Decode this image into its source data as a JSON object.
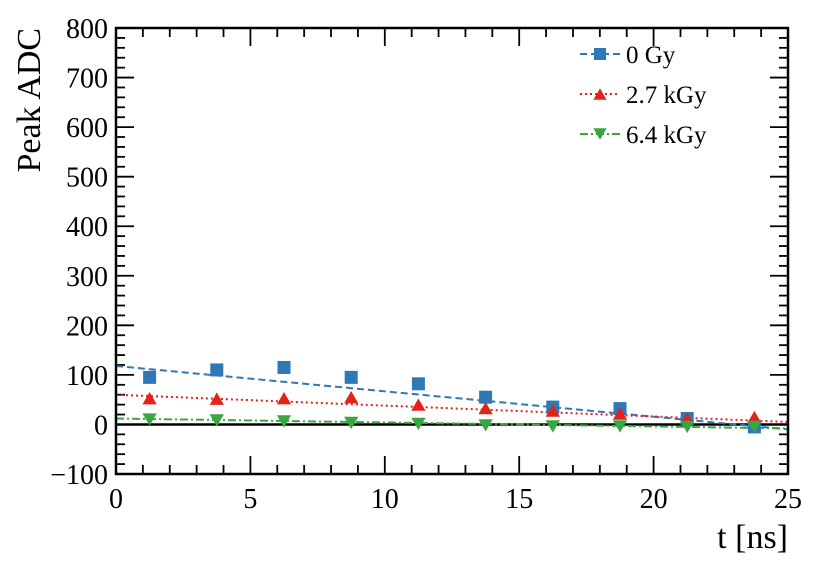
{
  "chart_data": {
    "type": "scatter",
    "title": "",
    "xlabel": "t [ns]",
    "ylabel": "Peak ADC",
    "xlim": [
      0,
      25
    ],
    "ylim": [
      -100,
      800
    ],
    "x_ticks": [
      0,
      5,
      10,
      15,
      20,
      25
    ],
    "x_tick_labels": [
      "0",
      "5",
      "10",
      "15",
      "20",
      "25"
    ],
    "y_ticks": [
      -100,
      0,
      100,
      200,
      300,
      400,
      500,
      600,
      700,
      800
    ],
    "y_tick_labels": [
      "−100",
      "0",
      "100",
      "200",
      "300",
      "400",
      "500",
      "600",
      "700",
      "800"
    ],
    "grid": false,
    "legend_position": "top-right",
    "zero_line": true,
    "series": [
      {
        "name": "0 Gy",
        "color": "#2e79b5",
        "marker": "square",
        "line_style": "dashed",
        "x": [
          1.25,
          3.75,
          6.25,
          8.75,
          11.25,
          13.75,
          16.25,
          18.75,
          21.25,
          23.75
        ],
        "y": [
          95,
          110,
          115,
          95,
          82,
          55,
          35,
          32,
          12,
          -5
        ],
        "fit": {
          "x": [
            0,
            25
          ],
          "y": [
            118,
            -10
          ]
        }
      },
      {
        "name": "2.7 kGy",
        "color": "#e3221c",
        "marker": "triangle-up",
        "line_style": "dotted",
        "x": [
          1.25,
          3.75,
          6.25,
          8.75,
          11.25,
          13.75,
          16.25,
          18.75,
          21.25,
          23.75
        ],
        "y": [
          53,
          52,
          53,
          55,
          40,
          33,
          28,
          22,
          12,
          15
        ],
        "fit": {
          "x": [
            0,
            25
          ],
          "y": [
            60,
            5
          ]
        }
      },
      {
        "name": "6.4 kGy",
        "color": "#3aa641",
        "marker": "triangle-down",
        "line_style": "dashdot",
        "x": [
          1.25,
          3.75,
          6.25,
          8.75,
          11.25,
          13.75,
          16.25,
          18.75,
          21.25,
          23.75
        ],
        "y": [
          10,
          8,
          6,
          3,
          1,
          -2,
          -4,
          -4,
          -5,
          -5
        ],
        "fit": {
          "x": [
            0,
            25
          ],
          "y": [
            12,
            -8
          ]
        }
      }
    ]
  }
}
